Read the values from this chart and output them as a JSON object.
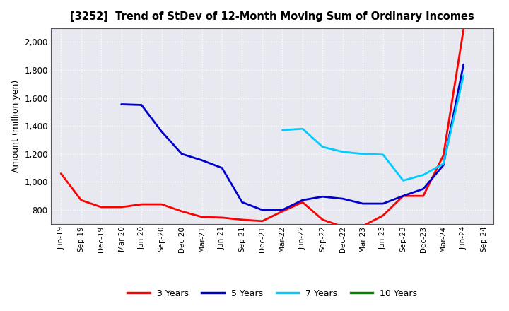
{
  "title": "[3252]  Trend of StDev of 12-Month Moving Sum of Ordinary Incomes",
  "ylabel": "Amount (million yen)",
  "background_color": "#ffffff",
  "plot_bg_color": "#e8e8f0",
  "grid_color": "#ffffff",
  "ylim": [
    700,
    2100
  ],
  "yticks": [
    800,
    1000,
    1200,
    1400,
    1600,
    1800,
    2000
  ],
  "x_labels": [
    "Jun-19",
    "Sep-19",
    "Dec-19",
    "Mar-20",
    "Jun-20",
    "Sep-20",
    "Dec-20",
    "Mar-21",
    "Jun-21",
    "Sep-21",
    "Dec-21",
    "Mar-22",
    "Jun-22",
    "Sep-22",
    "Dec-22",
    "Mar-23",
    "Jun-23",
    "Sep-23",
    "Dec-23",
    "Mar-24",
    "Jun-24",
    "Sep-24"
  ],
  "series": {
    "3 Years": {
      "color": "#ff0000",
      "values": [
        1060,
        870,
        820,
        820,
        840,
        840,
        790,
        750,
        745,
        730,
        720,
        790,
        855,
        730,
        680,
        685,
        760,
        900,
        900,
        1190,
        2090,
        null
      ]
    },
    "5 Years": {
      "color": "#0000cc",
      "values": [
        null,
        null,
        null,
        1555,
        1550,
        1360,
        1200,
        1155,
        1100,
        855,
        800,
        800,
        870,
        895,
        880,
        845,
        845,
        900,
        950,
        1120,
        1840,
        null
      ]
    },
    "7 Years": {
      "color": "#00ccff",
      "values": [
        null,
        null,
        null,
        null,
        null,
        null,
        null,
        null,
        null,
        null,
        null,
        1370,
        1380,
        1250,
        1215,
        1200,
        1195,
        1010,
        1050,
        1130,
        1760,
        null
      ]
    },
    "10 Years": {
      "color": "#008800",
      "values": [
        null,
        null,
        null,
        null,
        null,
        null,
        null,
        null,
        null,
        null,
        null,
        null,
        null,
        null,
        null,
        null,
        null,
        null,
        null,
        null,
        null,
        null
      ]
    }
  }
}
